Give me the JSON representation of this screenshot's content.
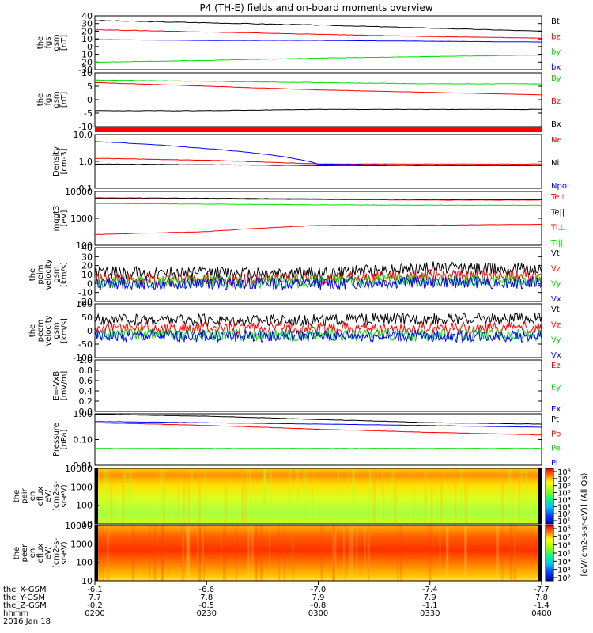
{
  "title": "P4 (TH-E) fields and on-board moments overview",
  "colors": {
    "black": "#000000",
    "red": "#ff0000",
    "green": "#00dd00",
    "blue": "#0000ff"
  },
  "panels": [
    {
      "id": "fgs-gsm",
      "ylabel": [
        "the",
        "fgs",
        "gsm",
        "[nT]"
      ],
      "ticks": [
        "40",
        "30",
        "20",
        "10",
        "0",
        "-10",
        "-20",
        "-30"
      ],
      "legend": [
        {
          "text": "Bt",
          "color": "#000000"
        },
        {
          "text": "bz",
          "color": "#ff0000"
        },
        {
          "text": "by",
          "color": "#00dd00"
        },
        {
          "text": "bx",
          "color": "#0000ff"
        }
      ]
    },
    {
      "id": "fgs-gsm-2",
      "ylabel": [
        "the",
        "fgs",
        "gsm",
        "[nT]"
      ],
      "ticks": [
        "10",
        "5",
        "0",
        "-5",
        "-10"
      ],
      "legend": [
        {
          "text": "By",
          "color": "#00dd00"
        },
        {
          "text": "Bz",
          "color": "#ff0000"
        },
        {
          "text": "Bx",
          "color": "#000000"
        }
      ]
    },
    {
      "id": "density",
      "ylabel": [
        "Density",
        "[cm-3]"
      ],
      "ticks": [
        "10.0",
        "1.0",
        "0.1"
      ],
      "legend": [
        {
          "text": "Ne",
          "color": "#ff0000"
        },
        {
          "text": "Ni",
          "color": "#000000"
        },
        {
          "text": "Npot",
          "color": "#0000ff"
        }
      ]
    },
    {
      "id": "temperature",
      "ylabel": [
        "mqgt3",
        "[eV]"
      ],
      "ticks": [
        "10000",
        "1000",
        "100"
      ],
      "legend": [
        {
          "text": "Te⊥",
          "color": "#ff0000"
        },
        {
          "text": "Te||",
          "color": "#000000"
        },
        {
          "text": "Ti⊥",
          "color": "#ff0000"
        },
        {
          "text": "Ti||",
          "color": "#00dd00"
        }
      ]
    },
    {
      "id": "peim-velocity",
      "ylabel": [
        "the",
        "peim",
        "velocity",
        "gsm",
        "[km/s]"
      ],
      "ticks": [
        "40",
        "30",
        "20",
        "10",
        "0",
        "-10",
        "-20"
      ],
      "legend": [
        {
          "text": "Vt",
          "color": "#000000"
        },
        {
          "text": "Vz",
          "color": "#ff0000"
        },
        {
          "text": "Vy",
          "color": "#00dd00"
        },
        {
          "text": "Vx",
          "color": "#0000ff"
        }
      ]
    },
    {
      "id": "peem-velocity",
      "ylabel": [
        "the",
        "peem",
        "velocity",
        "gsm",
        "[km/s]"
      ],
      "ticks": [
        "100",
        "50",
        "0",
        "-50",
        "-100"
      ],
      "legend": [
        {
          "text": "Vt",
          "color": "#000000"
        },
        {
          "text": "Vz",
          "color": "#ff0000"
        },
        {
          "text": "Vy",
          "color": "#00dd00"
        },
        {
          "text": "Vx",
          "color": "#0000ff"
        }
      ]
    },
    {
      "id": "efield",
      "ylabel": [
        "E=-VxB",
        "[mV/m]"
      ],
      "ticks": [
        "1.0",
        "0.8",
        "0.6",
        "0.4",
        "0.2",
        "0.0"
      ],
      "legend": [
        {
          "text": "Ez",
          "color": "#ff0000"
        },
        {
          "text": "Ey",
          "color": "#00dd00"
        },
        {
          "text": "Ex",
          "color": "#0000ff"
        }
      ]
    },
    {
      "id": "pressure",
      "ylabel": [
        "Pressure",
        "[nPa]"
      ],
      "ticks": [
        "1.00",
        "0.10",
        "0.01"
      ],
      "legend": [
        {
          "text": "Pt",
          "color": "#000000"
        },
        {
          "text": "Pb",
          "color": "#ff0000"
        },
        {
          "text": "Pe",
          "color": "#00dd00"
        },
        {
          "text": "Pi",
          "color": "#0000ff"
        }
      ]
    },
    {
      "id": "peir-en-eflux",
      "ylabel": [
        "the",
        "peir",
        "en",
        "eflux",
        "eV/",
        "(cm2-s-",
        "sr-eV)"
      ],
      "ticks": [
        "10000",
        "1000",
        "100",
        "10"
      ],
      "legend": []
    },
    {
      "id": "peer-en-eflux",
      "ylabel": [
        "the",
        "peer",
        "en",
        "eflux",
        "eV/",
        "(cm2-s-",
        "sr-eV)"
      ],
      "ticks": [
        "10000",
        "1000",
        "100",
        "10"
      ],
      "legend": []
    }
  ],
  "colorbar": {
    "upper_ticks": [
      "10⁸",
      "10⁷",
      "10⁶",
      "10⁵",
      "10⁴",
      "10³",
      "10²",
      "10¹"
    ],
    "lower_ticks": [
      "10⁸",
      "10⁷",
      "10⁶",
      "10⁵",
      "10⁴",
      "10³",
      "10²"
    ],
    "label": "[eV/(cm2-s-sr-eV)] (All Qs)"
  },
  "xaxis": {
    "row_labels": [
      "the_X-GSM",
      "the_Y-GSM",
      "the_Z-GSM",
      "hhmm",
      "2016 Jan 18"
    ],
    "columns": [
      [
        "-6.1",
        "7.7",
        "-0.2",
        "0200"
      ],
      [
        "-6.6",
        "7.8",
        "-0.5",
        "0230"
      ],
      [
        "-7.0",
        "7.9",
        "-0.8",
        "0300"
      ],
      [
        "-7.4",
        "7.9",
        "-1.1",
        "0330"
      ],
      [
        "-7.7",
        "7.8",
        "-1.4",
        "0400"
      ]
    ]
  },
  "chart_data": [
    {
      "type": "line",
      "id": "fgs-gsm",
      "ylim": [
        -30,
        40
      ],
      "x": [
        "0200",
        "0230",
        "0300",
        "0330",
        "0400"
      ],
      "series": [
        {
          "name": "Bt",
          "values": [
            34,
            31,
            28,
            24,
            20
          ]
        },
        {
          "name": "bz",
          "values": [
            22,
            19,
            16,
            13,
            11
          ]
        },
        {
          "name": "by",
          "values": [
            -20,
            -18,
            -15,
            -13,
            -11
          ]
        },
        {
          "name": "bx",
          "values": [
            9,
            8,
            8,
            7,
            6
          ]
        }
      ]
    },
    {
      "type": "line",
      "id": "fgs-gsm-2",
      "ylim": [
        -12,
        10
      ],
      "x": [
        "0200",
        "0230",
        "0300",
        "0330",
        "0400"
      ],
      "series": [
        {
          "name": "By",
          "values": [
            7,
            6.5,
            6,
            5.5,
            5.5
          ]
        },
        {
          "name": "Bz",
          "values": [
            6,
            4.5,
            3,
            2,
            1
          ]
        },
        {
          "name": "Bx",
          "values": [
            -5.5,
            -5.5,
            -5,
            -5,
            -5
          ]
        }
      ]
    },
    {
      "type": "line",
      "id": "density",
      "scale": "log",
      "ylim": [
        0.1,
        10
      ],
      "x": [
        "0200",
        "0230",
        "0300",
        "0330",
        "0400"
      ],
      "series": [
        {
          "name": "Ne",
          "values": [
            1.3,
            1.1,
            0.8,
            0.8,
            0.8
          ]
        },
        {
          "name": "Ni",
          "values": [
            0.8,
            0.75,
            0.7,
            0.7,
            0.7
          ]
        },
        {
          "name": "Npot",
          "values": [
            5.5,
            3,
            0.8,
            0.7,
            0.7
          ]
        }
      ]
    },
    {
      "type": "line",
      "id": "temperature",
      "scale": "log",
      "ylim": [
        100,
        10000
      ],
      "x": [
        "0200",
        "0230",
        "0300",
        "0330",
        "0400"
      ],
      "series": [
        {
          "name": "Te⊥",
          "values": [
            5500,
            5300,
            5000,
            4800,
            4800
          ]
        },
        {
          "name": "Te||",
          "values": [
            5800,
            5600,
            5300,
            5100,
            5000
          ]
        },
        {
          "name": "Ti⊥",
          "values": [
            250,
            320,
            550,
            560,
            600
          ]
        },
        {
          "name": "Ti||",
          "values": [
            3600,
            3400,
            3200,
            3100,
            3100
          ]
        }
      ]
    },
    {
      "type": "line",
      "id": "peim-velocity",
      "ylim": [
        -20,
        40
      ],
      "x": [
        "0200",
        "0230",
        "0300",
        "0330",
        "0400"
      ],
      "series": [
        {
          "name": "Vt",
          "values": [
            12,
            12,
            11,
            18,
            16
          ]
        },
        {
          "name": "Vz",
          "values": [
            5,
            5,
            5,
            9,
            8
          ]
        },
        {
          "name": "Vy",
          "values": [
            2,
            2,
            2,
            4,
            3
          ]
        },
        {
          "name": "Vx",
          "values": [
            0,
            0,
            0,
            2,
            1
          ]
        }
      ]
    },
    {
      "type": "line",
      "id": "peem-velocity",
      "ylim": [
        -100,
        100
      ],
      "x": [
        "0200",
        "0230",
        "0300",
        "0330",
        "0400"
      ],
      "series": [
        {
          "name": "Vt",
          "values": [
            40,
            40,
            40,
            45,
            45
          ]
        },
        {
          "name": "Vz",
          "values": [
            10,
            10,
            10,
            10,
            10
          ]
        },
        {
          "name": "Vy",
          "values": [
            -15,
            -15,
            -15,
            -15,
            -15
          ]
        },
        {
          "name": "Vx",
          "values": [
            -20,
            -20,
            -20,
            -20,
            -20
          ]
        }
      ]
    },
    {
      "type": "line",
      "id": "efield",
      "ylim": [
        0,
        1
      ],
      "x": [],
      "series": []
    },
    {
      "type": "line",
      "id": "pressure",
      "scale": "log",
      "ylim": [
        0.01,
        1
      ],
      "x": [
        "0200",
        "0230",
        "0300",
        "0330",
        "0400"
      ],
      "series": [
        {
          "name": "Pt",
          "values": [
            0.95,
            0.8,
            0.6,
            0.45,
            0.4
          ]
        },
        {
          "name": "Pb",
          "values": [
            0.45,
            0.35,
            0.25,
            0.19,
            0.15
          ]
        },
        {
          "name": "Pe",
          "values": [
            0.045,
            0.045,
            0.045,
            0.045,
            0.045
          ]
        },
        {
          "name": "Pi",
          "values": [
            0.5,
            0.45,
            0.4,
            0.35,
            0.3
          ]
        }
      ]
    },
    {
      "type": "heatmap",
      "id": "peir-en-eflux",
      "scale": "log",
      "ylim": [
        8,
        20000
      ],
      "x": [
        "0200",
        "0230",
        "0300",
        "0330",
        "0400"
      ]
    },
    {
      "type": "heatmap",
      "id": "peer-en-eflux",
      "scale": "log",
      "ylim": [
        8,
        20000
      ],
      "x": [
        "0200",
        "0230",
        "0300",
        "0330",
        "0400"
      ]
    }
  ]
}
